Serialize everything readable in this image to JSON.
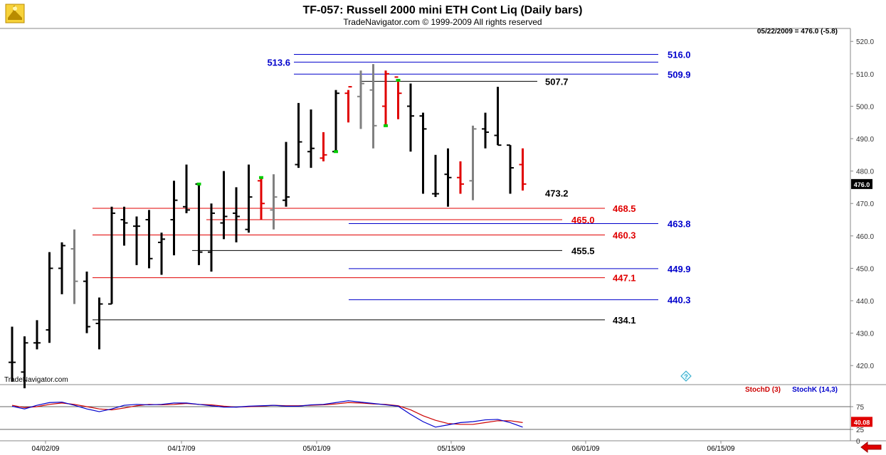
{
  "header": {
    "title": "TF-057:  Russell 2000 mini ETH Cont Liq  (Daily bars)",
    "subtitle": "TradeNavigator.com © 1999-2009 All rights reserved",
    "quote": "05/22/2009 = 476.0 (-5.8)"
  },
  "watermark": "TradeNavigator.com",
  "help_icon_label": "?",
  "colors": {
    "up": "#000000",
    "down": "#e00000",
    "neutral": "#808080",
    "signal": "#00cc00",
    "blue": "#0000cc",
    "red": "#e00000",
    "black": "#000000"
  },
  "chart_data": {
    "type": "ohlc",
    "title": "TF-057:  Russell 2000 mini ETH Cont Liq  (Daily bars)",
    "y_range": [
      415,
      524
    ],
    "y_ticks": [
      "420.0",
      "430.0",
      "440.0",
      "450.0",
      "460.0",
      "470.0",
      "480.0",
      "490.0",
      "500.0",
      "510.0",
      "520.0"
    ],
    "x_ticks": [
      "04/02/09",
      "04/17/09",
      "05/01/09",
      "05/15/09",
      "06/01/09",
      "06/15/09"
    ],
    "last_price_tag": "476.0",
    "bars": [
      {
        "o": 421,
        "h": 432,
        "l": 415,
        "c": 421,
        "color": "up"
      },
      {
        "o": 418,
        "h": 429,
        "l": 413,
        "c": 427,
        "color": "up"
      },
      {
        "o": 427,
        "h": 434,
        "l": 425,
        "c": 427,
        "color": "up"
      },
      {
        "o": 431,
        "h": 455,
        "l": 427,
        "c": 450,
        "color": "up"
      },
      {
        "o": 450,
        "h": 458,
        "l": 442,
        "c": 457,
        "color": "up"
      },
      {
        "o": 456,
        "h": 462,
        "l": 439,
        "c": 446,
        "color": "neutral"
      },
      {
        "o": 446,
        "h": 449,
        "l": 430,
        "c": 432,
        "color": "up"
      },
      {
        "o": 433,
        "h": 441,
        "l": 425,
        "c": 439,
        "color": "up"
      },
      {
        "o": 439,
        "h": 469,
        "l": 439,
        "c": 467,
        "color": "up"
      },
      {
        "o": 465,
        "h": 469,
        "l": 457,
        "c": 464,
        "color": "up"
      },
      {
        "o": 463,
        "h": 466,
        "l": 451,
        "c": 463,
        "color": "up"
      },
      {
        "o": 465,
        "h": 468,
        "l": 450,
        "c": 453,
        "color": "up"
      },
      {
        "o": 458,
        "h": 461,
        "l": 448,
        "c": 459,
        "color": "up"
      },
      {
        "o": 465,
        "h": 477,
        "l": 454,
        "c": 471,
        "color": "up"
      },
      {
        "o": 469,
        "h": 482,
        "l": 467,
        "c": 468,
        "color": "up"
      },
      {
        "o": 476,
        "h": 476,
        "l": 451,
        "c": 455,
        "color": "up",
        "hi_signal": true
      },
      {
        "o": 455,
        "h": 470,
        "l": 449,
        "c": 467,
        "color": "up"
      },
      {
        "o": 464,
        "h": 480,
        "l": 459,
        "c": 466,
        "color": "up"
      },
      {
        "o": 467,
        "h": 475,
        "l": 458,
        "c": 466,
        "color": "up"
      },
      {
        "o": 462,
        "h": 482,
        "l": 461,
        "c": 472,
        "color": "up"
      },
      {
        "o": 477,
        "h": 478,
        "l": 465,
        "c": 470,
        "color": "down",
        "hi_signal": true
      },
      {
        "o": 468,
        "h": 479,
        "l": 462,
        "c": 472,
        "color": "neutral"
      },
      {
        "o": 471,
        "h": 489,
        "l": 469,
        "c": 472,
        "color": "up"
      },
      {
        "o": 482,
        "h": 501,
        "l": 481,
        "c": 489,
        "color": "up"
      },
      {
        "o": 486,
        "h": 499,
        "l": 481,
        "c": 487,
        "color": "up"
      },
      {
        "o": 484,
        "h": 492,
        "l": 483,
        "c": 485,
        "color": "down"
      },
      {
        "o": 486,
        "h": 505,
        "l": 486,
        "c": 504,
        "color": "up",
        "lo_signal": true
      },
      {
        "o": 504,
        "h": 505,
        "l": 495,
        "c": 506,
        "color": "down"
      },
      {
        "o": 503,
        "h": 511,
        "l": 493,
        "c": 507,
        "color": "neutral"
      },
      {
        "o": 505,
        "h": 513,
        "l": 487,
        "c": 494,
        "color": "neutral"
      },
      {
        "o": 500,
        "h": 511,
        "l": 494,
        "c": 510,
        "color": "down",
        "lo_signal": true
      },
      {
        "o": 509,
        "h": 508,
        "l": 496,
        "c": 504,
        "color": "down",
        "hi_signal": true
      },
      {
        "o": 500,
        "h": 507,
        "l": 486,
        "c": 497,
        "color": "up"
      },
      {
        "o": 497,
        "h": 498,
        "l": 473,
        "c": 493,
        "color": "up"
      },
      {
        "o": 473,
        "h": 485,
        "l": 472,
        "c": 473,
        "color": "up"
      },
      {
        "o": 479,
        "h": 487,
        "l": 469,
        "c": 478,
        "color": "up"
      },
      {
        "o": 478,
        "h": 483,
        "l": 473,
        "c": 476,
        "color": "down"
      },
      {
        "o": 477,
        "h": 494,
        "l": 471,
        "c": 493,
        "color": "neutral"
      },
      {
        "o": 493,
        "h": 498,
        "l": 487,
        "c": 492,
        "color": "up"
      },
      {
        "o": 491,
        "h": 506,
        "l": 488,
        "c": 488,
        "color": "up"
      },
      {
        "o": 488,
        "h": 488,
        "l": 473,
        "c": 481,
        "color": "up"
      },
      {
        "o": 482,
        "h": 487,
        "l": 474,
        "c": 476,
        "color": "down"
      }
    ],
    "levels": [
      {
        "value": 516.0,
        "label": "516.0",
        "color": "blue"
      },
      {
        "value": 513.6,
        "label": "513.6",
        "color": "blue"
      },
      {
        "value": 509.9,
        "label": "509.9",
        "color": "blue"
      },
      {
        "value": 507.7,
        "label": "507.7",
        "color": "black"
      },
      {
        "value": 473.2,
        "label": "473.2",
        "color": "black"
      },
      {
        "value": 468.5,
        "label": "468.5",
        "color": "red"
      },
      {
        "value": 465.0,
        "label": "465.0",
        "color": "red"
      },
      {
        "value": 463.8,
        "label": "463.8",
        "color": "blue"
      },
      {
        "value": 460.3,
        "label": "460.3",
        "color": "red"
      },
      {
        "value": 455.5,
        "label": "455.5",
        "color": "black"
      },
      {
        "value": 449.9,
        "label": "449.9",
        "color": "blue"
      },
      {
        "value": 447.1,
        "label": "447.1",
        "color": "red"
      },
      {
        "value": 440.3,
        "label": "440.3",
        "color": "blue"
      },
      {
        "value": 434.1,
        "label": "434.1",
        "color": "black"
      }
    ],
    "stochastic": {
      "legend_d": "StochD (3)",
      "legend_k": "StochK (14,3)",
      "y_ticks": [
        "75",
        "25",
        "0"
      ],
      "value_tag": "40.08",
      "d_values": [
        78,
        73,
        75,
        80,
        83,
        80,
        75,
        70,
        68,
        72,
        77,
        80,
        79,
        80,
        82,
        80,
        79,
        76,
        74,
        75,
        76,
        78,
        77,
        77,
        78,
        79,
        81,
        84,
        83,
        81,
        80,
        77,
        68,
        55,
        45,
        38,
        36,
        36,
        40,
        44,
        44,
        40
      ],
      "k_values": [
        76,
        70,
        78,
        84,
        85,
        78,
        70,
        64,
        70,
        78,
        80,
        79,
        80,
        83,
        83,
        80,
        77,
        74,
        74,
        76,
        77,
        78,
        76,
        76,
        79,
        80,
        84,
        88,
        85,
        82,
        79,
        76,
        58,
        42,
        30,
        35,
        40,
        42,
        46,
        47,
        40,
        30
      ]
    }
  }
}
